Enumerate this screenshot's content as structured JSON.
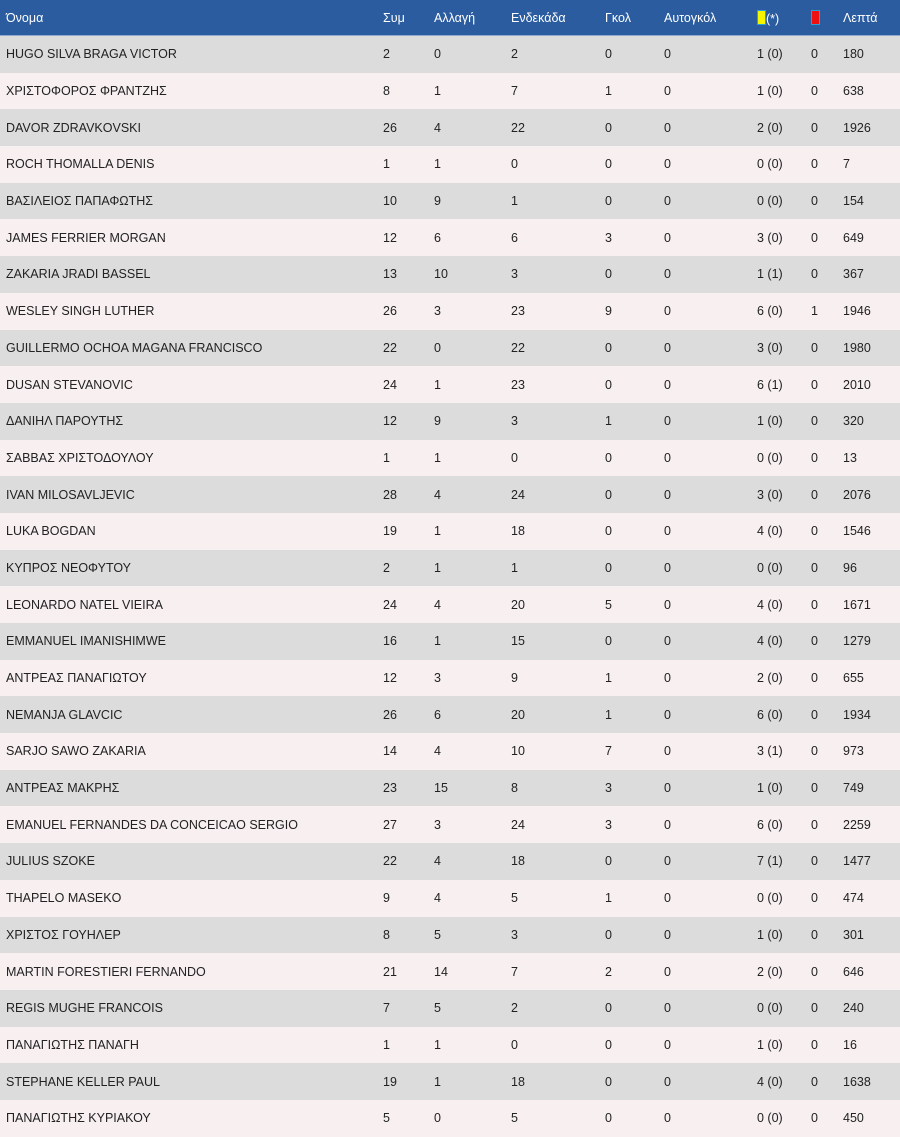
{
  "colors": {
    "header": "#2b5c9f",
    "row_even": "#dcdcdc",
    "row_odd": "#f7eff0",
    "yellow_card": "#f5f500",
    "red_card": "#ee1111"
  },
  "headers": {
    "name": "Όνομα",
    "apps": "Συμ",
    "subs": "Αλλαγή",
    "starts": "Ενδεκάδα",
    "goals": "Γκολ",
    "own_goals": "Αυτογκόλ",
    "yellow_suffix": "(*)",
    "minutes": "Λεπτά",
    "yellow_icon": "yellow-card-icon",
    "red_icon": "red-card-icon"
  },
  "rows": [
    [
      "HUGO SILVA BRAGA VICTOR",
      "2",
      "0",
      "2",
      "0",
      "0",
      "1 (0)",
      "0",
      "180"
    ],
    [
      "ΧΡΙΣΤΟΦΟΡΟΣ ΦΡΑΝΤΖΗΣ",
      "8",
      "1",
      "7",
      "1",
      "0",
      "1 (0)",
      "0",
      "638"
    ],
    [
      "DAVOR ZDRAVKOVSKI",
      "26",
      "4",
      "22",
      "0",
      "0",
      "2 (0)",
      "0",
      "1926"
    ],
    [
      "ROCH THOMALLA DENIS",
      "1",
      "1",
      "0",
      "0",
      "0",
      "0 (0)",
      "0",
      "7"
    ],
    [
      "ΒΑΣΙΛΕΙΟΣ ΠΑΠΑΦΩΤΗΣ",
      "10",
      "9",
      "1",
      "0",
      "0",
      "0 (0)",
      "0",
      "154"
    ],
    [
      "JAMES FERRIER MORGAN",
      "12",
      "6",
      "6",
      "3",
      "0",
      "3 (0)",
      "0",
      "649"
    ],
    [
      "ZAKARIA JRADI BASSEL",
      "13",
      "10",
      "3",
      "0",
      "0",
      "1 (1)",
      "0",
      "367"
    ],
    [
      "WESLEY SINGH LUTHER",
      "26",
      "3",
      "23",
      "9",
      "0",
      "6 (0)",
      "1",
      "1946"
    ],
    [
      "GUILLERMO OCHOA MAGANA FRANCISCO",
      "22",
      "0",
      "22",
      "0",
      "0",
      "3 (0)",
      "0",
      "1980"
    ],
    [
      "DUSAN STEVANOVIC",
      "24",
      "1",
      "23",
      "0",
      "0",
      "6 (1)",
      "0",
      "2010"
    ],
    [
      "ΔΑΝΙΗΛ ΠΑΡΟΥΤΗΣ",
      "12",
      "9",
      "3",
      "1",
      "0",
      "1 (0)",
      "0",
      "320"
    ],
    [
      "ΣΑΒΒΑΣ ΧΡΙΣΤΟΔΟΥΛΟΥ",
      "1",
      "1",
      "0",
      "0",
      "0",
      "0 (0)",
      "0",
      "13"
    ],
    [
      "IVAN MILOSAVLJEVIC",
      "28",
      "4",
      "24",
      "0",
      "0",
      "3 (0)",
      "0",
      "2076"
    ],
    [
      "LUKA BOGDAN",
      "19",
      "1",
      "18",
      "0",
      "0",
      "4 (0)",
      "0",
      "1546"
    ],
    [
      "ΚΥΠΡΟΣ ΝΕΟΦΥΤΟΥ",
      "2",
      "1",
      "1",
      "0",
      "0",
      "0 (0)",
      "0",
      "96"
    ],
    [
      "LEONARDO NATEL VIEIRA",
      "24",
      "4",
      "20",
      "5",
      "0",
      "4 (0)",
      "0",
      "1671"
    ],
    [
      "EMMANUEL IMANISHIMWE",
      "16",
      "1",
      "15",
      "0",
      "0",
      "4 (0)",
      "0",
      "1279"
    ],
    [
      "ΑΝΤΡΕΑΣ ΠΑΝΑΓΙΩΤΟΥ",
      "12",
      "3",
      "9",
      "1",
      "0",
      "2 (0)",
      "0",
      "655"
    ],
    [
      "NEMANJA GLAVCIC",
      "26",
      "6",
      "20",
      "1",
      "0",
      "6 (0)",
      "0",
      "1934"
    ],
    [
      "SARJO SAWO ZAKARIA",
      "14",
      "4",
      "10",
      "7",
      "0",
      "3 (1)",
      "0",
      "973"
    ],
    [
      "ΑΝΤΡΕΑΣ ΜΑΚΡΗΣ",
      "23",
      "15",
      "8",
      "3",
      "0",
      "1 (0)",
      "0",
      "749"
    ],
    [
      "EMANUEL FERNANDES DA CONCEICAO SERGIO",
      "27",
      "3",
      "24",
      "3",
      "0",
      "6 (0)",
      "0",
      "2259"
    ],
    [
      "JULIUS SZOKE",
      "22",
      "4",
      "18",
      "0",
      "0",
      "7 (1)",
      "0",
      "1477"
    ],
    [
      "THAPELO MASEKO",
      "9",
      "4",
      "5",
      "1",
      "0",
      "0 (0)",
      "0",
      "474"
    ],
    [
      "ΧΡΙΣΤΟΣ ΓΟΥΗΛΕΡ",
      "8",
      "5",
      "3",
      "0",
      "0",
      "1 (0)",
      "0",
      "301"
    ],
    [
      "MARTIN FORESTIERI FERNANDO",
      "21",
      "14",
      "7",
      "2",
      "0",
      "2 (0)",
      "0",
      "646"
    ],
    [
      "REGIS MUGHE FRANCOIS",
      "7",
      "5",
      "2",
      "0",
      "0",
      "0 (0)",
      "0",
      "240"
    ],
    [
      "ΠΑΝΑΓΙΩΤΗΣ ΠΑΝΑΓΗ",
      "1",
      "1",
      "0",
      "0",
      "0",
      "1 (0)",
      "0",
      "16"
    ],
    [
      "STEPHANE KELLER PAUL",
      "19",
      "1",
      "18",
      "0",
      "0",
      "4 (0)",
      "0",
      "1638"
    ],
    [
      "ΠΑΝΑΓΙΩΤΗΣ ΚΥΡΙΑΚΟΥ",
      "5",
      "0",
      "5",
      "0",
      "0",
      "0 (0)",
      "0",
      "450"
    ]
  ]
}
